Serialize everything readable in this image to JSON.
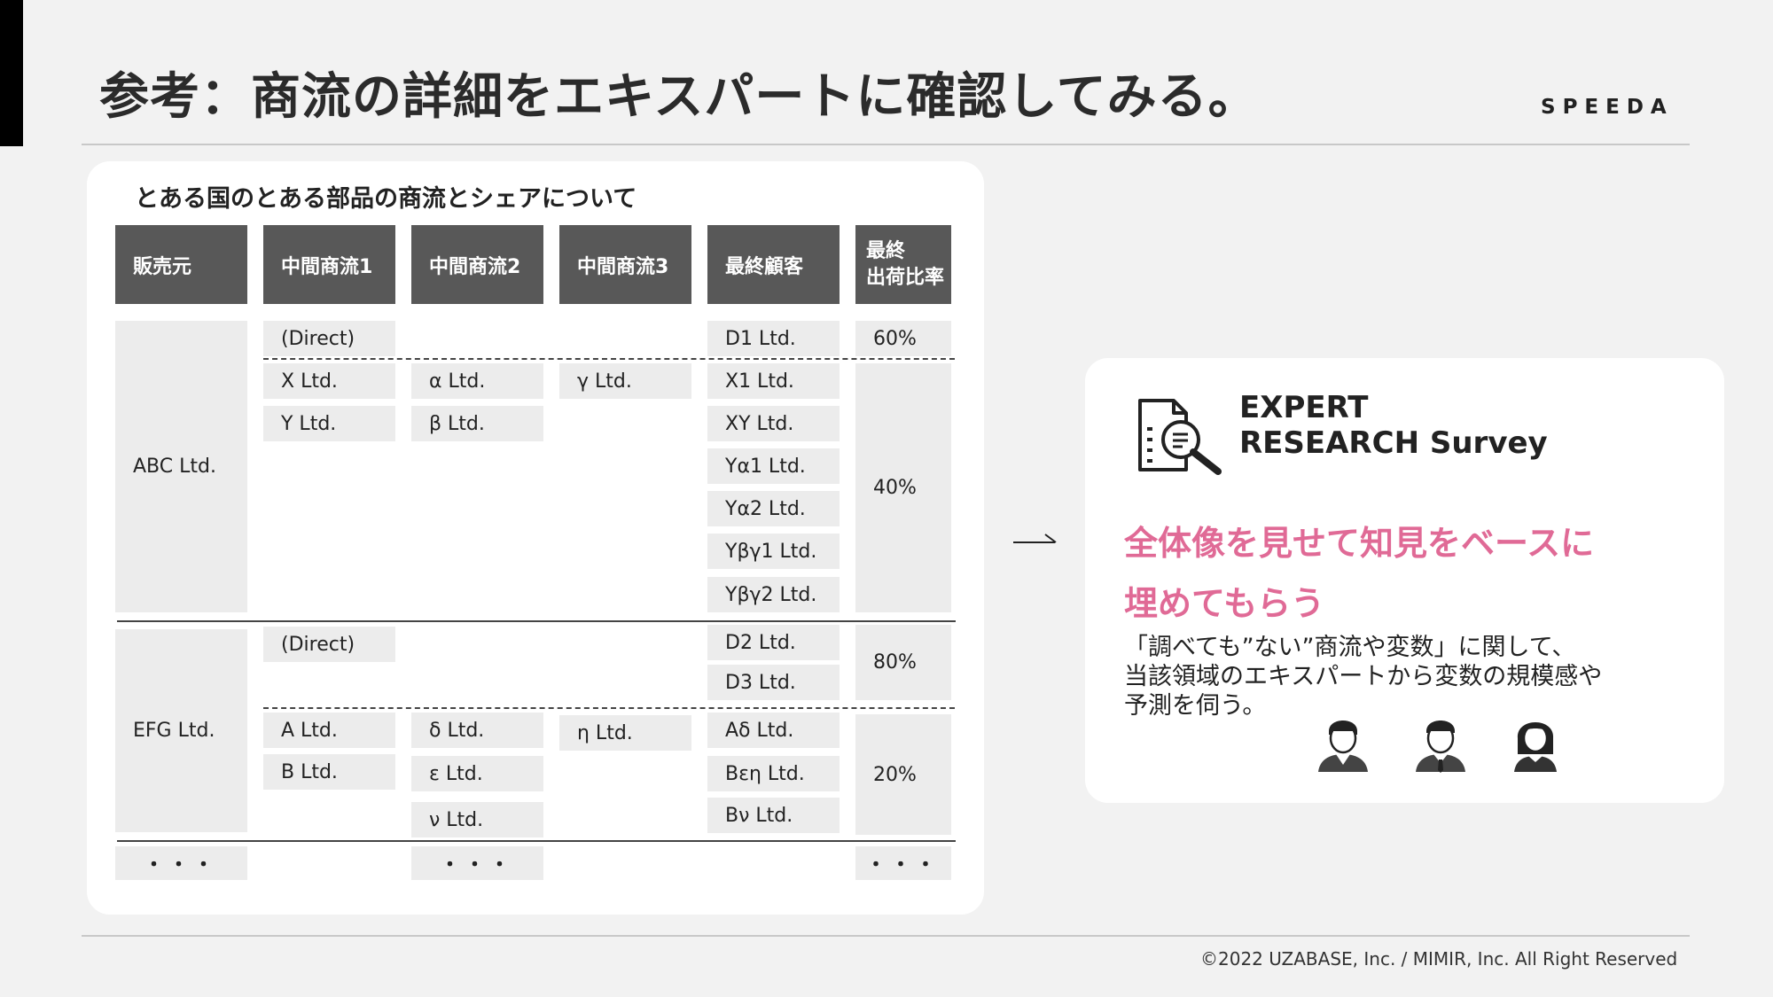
{
  "page": {
    "title": "参考：商流の詳細をエキスパートに確認してみる。",
    "brand": "SPEEDA",
    "footer": "©2022 UZABASE, Inc. / MIMIR, Inc. All Right Reserved"
  },
  "table_card": {
    "title": "とある国のとある部品の商流とシェアについて",
    "headers": [
      "販売元",
      "中間商流1",
      "中間商流2",
      "中間商流3",
      "最終顧客",
      "最終\n出荷比率"
    ],
    "groups": [
      {
        "seller": "ABC Ltd.",
        "rows": [
          {
            "c1": "(Direct)",
            "c2": "",
            "c3": "",
            "customers": [
              "D1 Ltd."
            ],
            "share": "60%"
          },
          {
            "c1": "X Ltd.",
            "c2": "α Ltd.",
            "c3": "γ Ltd.",
            "customers": [
              "X1 Ltd."
            ]
          },
          {
            "c1": "Y Ltd.",
            "c2": "β Ltd.",
            "c3": "",
            "customers": [
              "XY Ltd.",
              "Yα1 Ltd.",
              "Yα2 Ltd.",
              "Yβγ1 Ltd.",
              "Yβγ2 Ltd."
            ],
            "share": "40%"
          }
        ]
      },
      {
        "seller": "EFG Ltd.",
        "rows": [
          {
            "c1": "(Direct)",
            "c2": "",
            "c3": "",
            "customers": [
              "D2 Ltd.",
              "D3 Ltd."
            ],
            "share": "80%"
          },
          {
            "c1": "A Ltd.",
            "c2": "δ Ltd.",
            "c3": "η Ltd.",
            "customers": [
              "Aδ Ltd."
            ]
          },
          {
            "c1": "B Ltd.",
            "c2": "ε Ltd.",
            "c3": "",
            "customers": [
              "Bεη Ltd."
            ]
          },
          {
            "c1": "",
            "c2": "ν Ltd.",
            "c3": "",
            "customers": [
              "Bν Ltd."
            ],
            "share": "20%"
          }
        ]
      }
    ],
    "ellipsis": "・・・"
  },
  "arrow": {
    "label": "→"
  },
  "expert_card": {
    "title_line1": "EXPERT",
    "title_line2": "RESEARCH Survey",
    "headline_line1": "全体像を見せて知見をベースに",
    "headline_line2": "埋めてもらう",
    "desc_line1": "「調べても”ない”商流や変数」に関して、",
    "desc_line2": "当該領域のエキスパートから変数の規模感や",
    "desc_line3": "予測を伺う。",
    "icons": [
      "document-search-icon",
      "expert-person-icon",
      "expert-person-tie-icon",
      "expert-person-female-icon"
    ],
    "accent_color": "#e06a96"
  }
}
